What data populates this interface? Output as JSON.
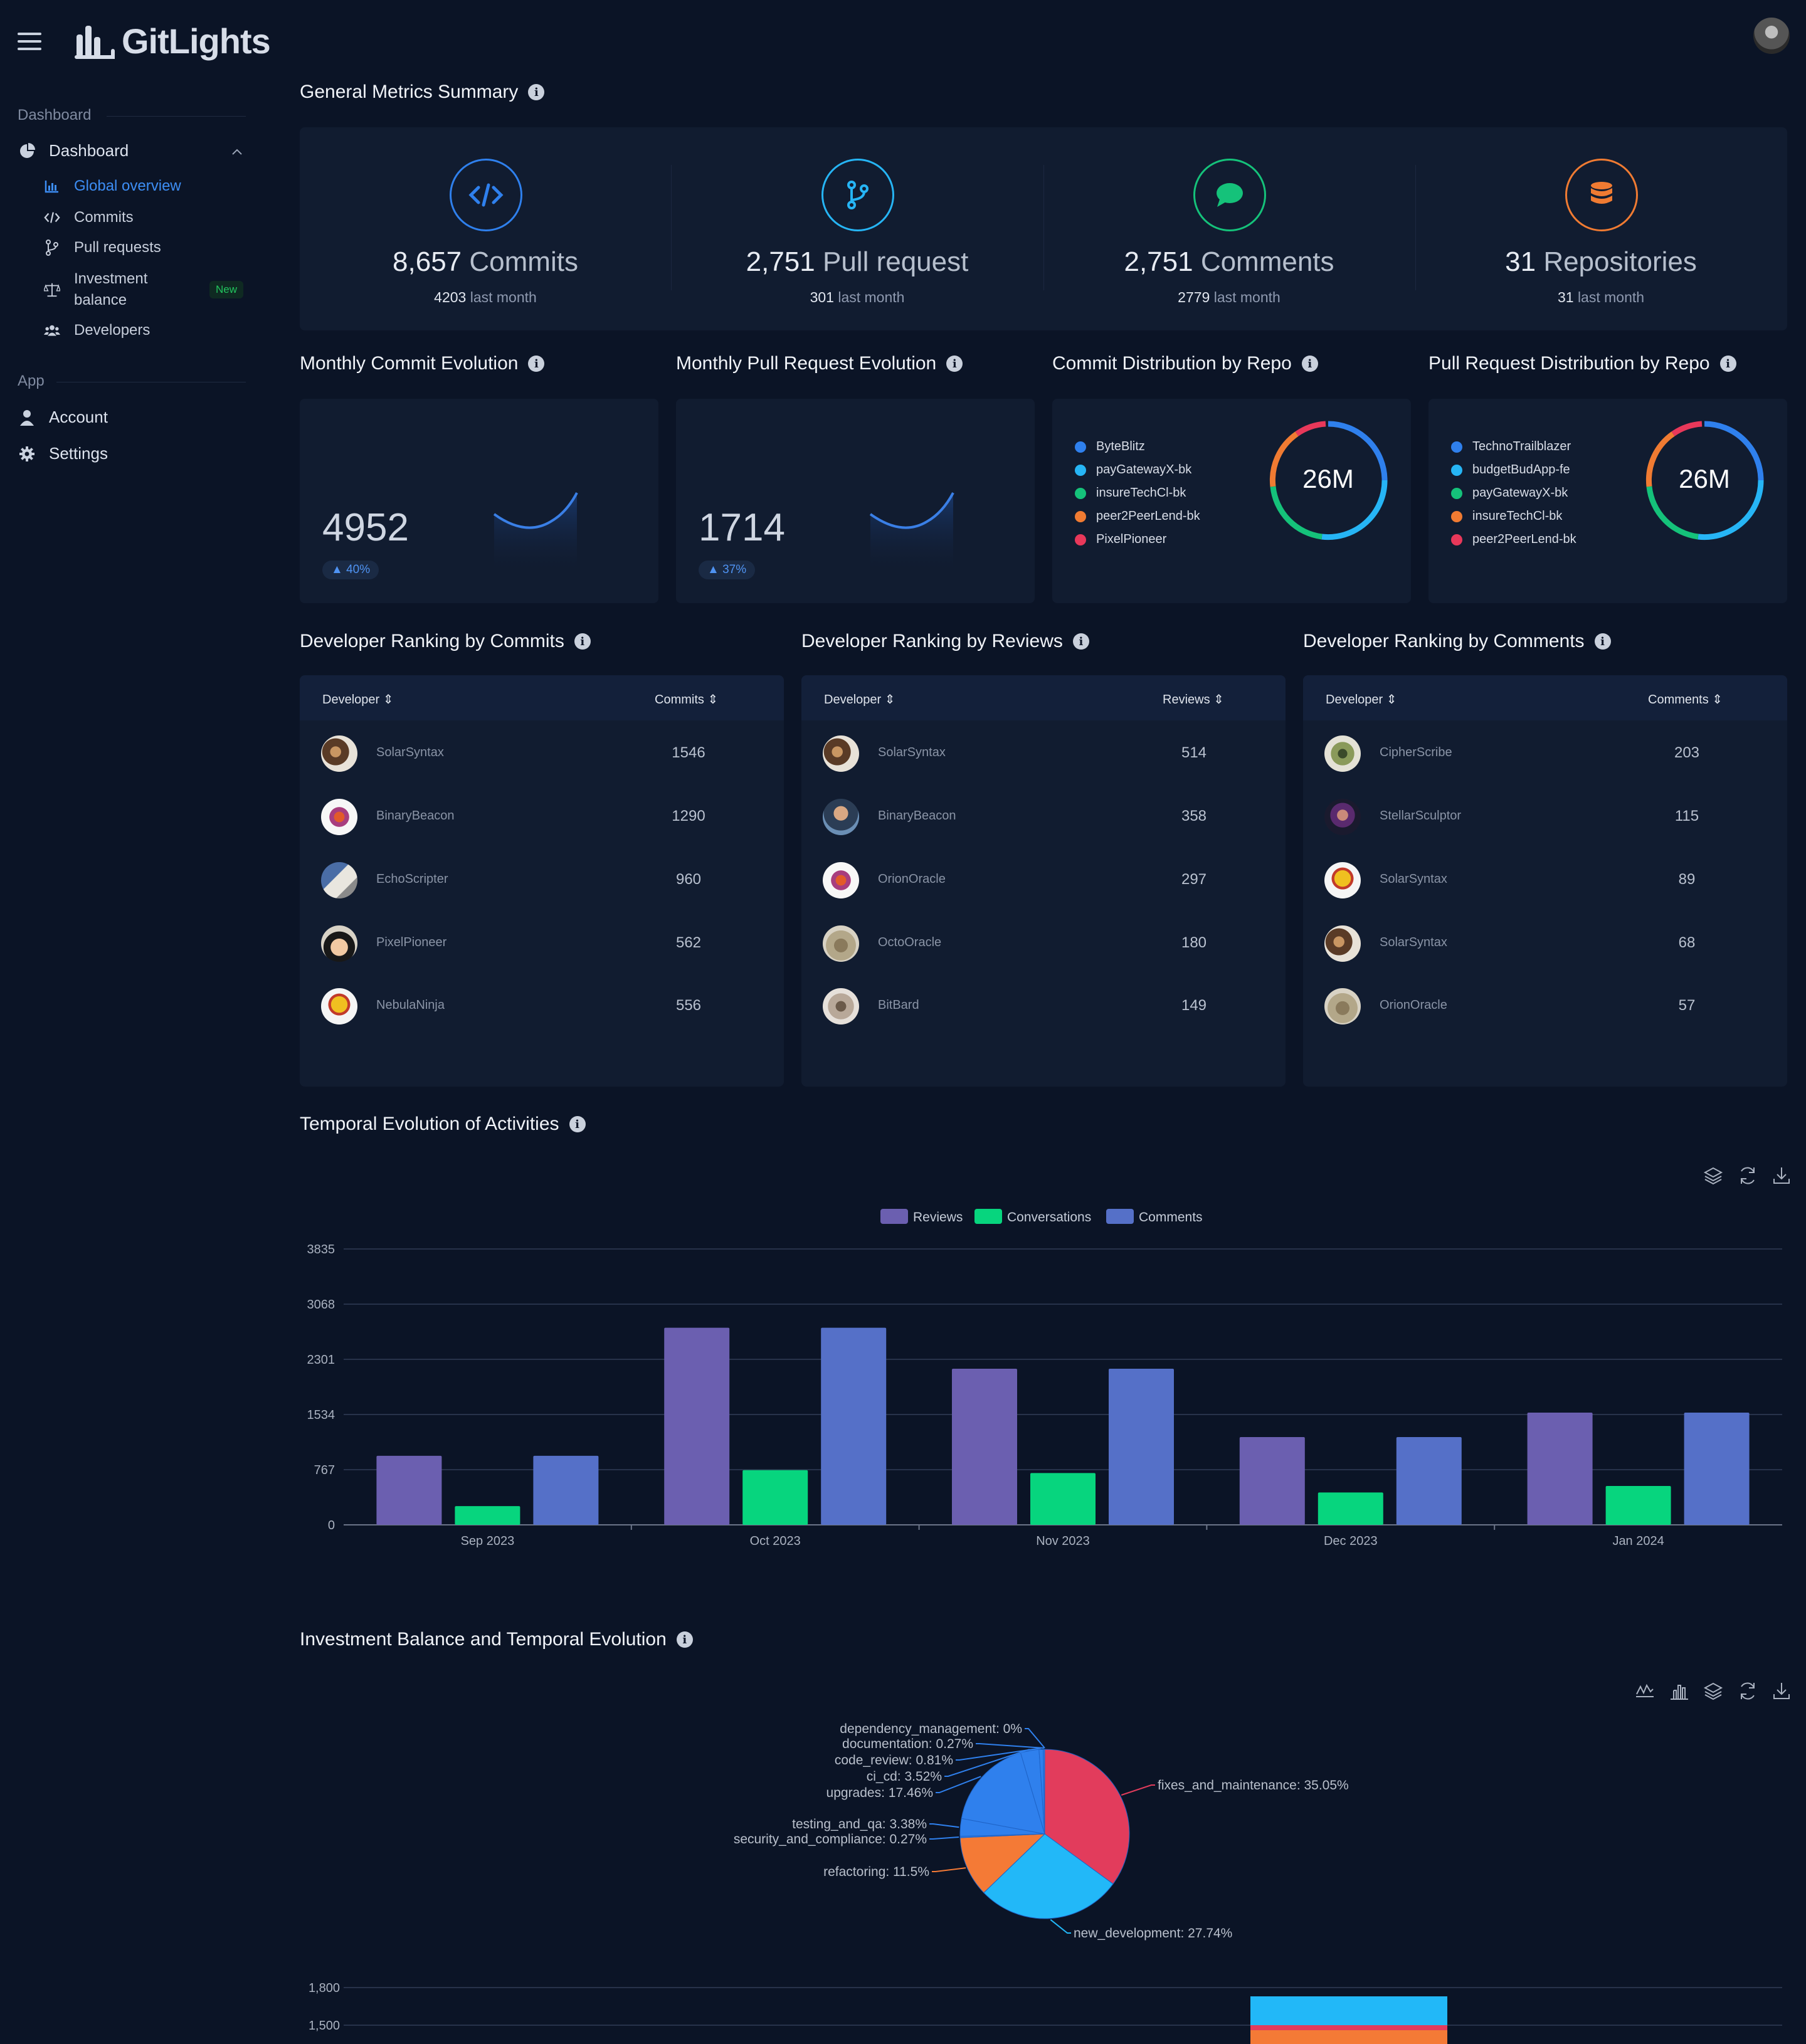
{
  "app": {
    "name": "GitLights"
  },
  "sidebar": {
    "section_dashboard": "Dashboard",
    "dashboard_label": "Dashboard",
    "sub_items": [
      {
        "label": "Global overview",
        "icon": "bar-chart-icon",
        "active": true
      },
      {
        "label": "Commits",
        "icon": "code-icon"
      },
      {
        "label": "Pull requests",
        "icon": "git-branch-icon"
      },
      {
        "label": "Investment balance",
        "icon": "scale-icon",
        "badge": "New"
      },
      {
        "label": "Developers",
        "icon": "users-icon"
      }
    ],
    "section_app": "App",
    "account_label": "Account",
    "settings_label": "Settings"
  },
  "general_metrics": {
    "title": "General Metrics Summary",
    "items": [
      {
        "value": "8,657",
        "unit": "Commits",
        "last_value": "4203",
        "last_label": "last month",
        "icon": "code-icon",
        "color": "#2f80ed"
      },
      {
        "value": "2,751",
        "unit": "Pull request",
        "last_value": "301",
        "last_label": "last month",
        "icon": "git-branch-icon",
        "color": "#26b5f5"
      },
      {
        "value": "2,751",
        "unit": "Comments",
        "last_value": "2779",
        "last_label": "last month",
        "icon": "chat-bubble-icon",
        "color": "#15c27a"
      },
      {
        "value": "31",
        "unit": "Repositories",
        "last_value": "31",
        "last_label": "last month",
        "icon": "database-icon",
        "color": "#f07b32"
      }
    ]
  },
  "monthly_commit": {
    "title": "Monthly Commit Evolution",
    "value": "4952",
    "change": "40%"
  },
  "monthly_pr": {
    "title": "Monthly Pull Request Evolution",
    "value": "1714",
    "change": "37%"
  },
  "commit_distribution": {
    "title": "Commit Distribution by Repo",
    "center_label": "26M",
    "repos": [
      {
        "name": "ByteBlitz",
        "color": "#2f80ed"
      },
      {
        "name": "payGatewayX-bk",
        "color": "#26b5f5"
      },
      {
        "name": "insureTechCl-bk",
        "color": "#15c27a"
      },
      {
        "name": "peer2PeerLend-bk",
        "color": "#f07b32"
      },
      {
        "name": "PixelPioneer",
        "color": "#e8385a"
      }
    ]
  },
  "pr_distribution": {
    "title": "Pull Request Distribution by Repo",
    "center_label": "26M",
    "repos": [
      {
        "name": "TechnoTrailblazer",
        "color": "#2f80ed"
      },
      {
        "name": "budgetBudApp-fe",
        "color": "#26b5f5"
      },
      {
        "name": "payGatewayX-bk",
        "color": "#15c27a"
      },
      {
        "name": "insureTechCl-bk",
        "color": "#f07b32"
      },
      {
        "name": "peer2PeerLend-bk",
        "color": "#e8385a"
      }
    ]
  },
  "rank_commits": {
    "title": "Developer Ranking by Commits",
    "col_dev": "Developer",
    "col_val": "Commits",
    "rows": [
      {
        "name": "SolarSyntax",
        "value": "1546"
      },
      {
        "name": "BinaryBeacon",
        "value": "1290"
      },
      {
        "name": "EchoScripter",
        "value": "960"
      },
      {
        "name": "PixelPioneer",
        "value": "562"
      },
      {
        "name": "NebulaNinja",
        "value": "556"
      }
    ]
  },
  "rank_reviews": {
    "title": "Developer Ranking by Reviews",
    "col_dev": "Developer",
    "col_val": "Reviews",
    "rows": [
      {
        "name": "SolarSyntax",
        "value": "514"
      },
      {
        "name": "BinaryBeacon",
        "value": "358"
      },
      {
        "name": "OrionOracle",
        "value": "297"
      },
      {
        "name": "OctoOracle",
        "value": "180"
      },
      {
        "name": "BitBard",
        "value": "149"
      }
    ]
  },
  "rank_comments": {
    "title": "Developer Ranking by Comments",
    "col_dev": "Developer",
    "col_val": "Comments",
    "rows": [
      {
        "name": "CipherScribe",
        "value": "203"
      },
      {
        "name": "StellarSculptor",
        "value": "115"
      },
      {
        "name": "SolarSyntax",
        "value": "89"
      },
      {
        "name": "SolarSyntax",
        "value": "68"
      },
      {
        "name": "OrionOracle",
        "value": "57"
      }
    ]
  },
  "temporal": {
    "title": "Temporal Evolution of Activities"
  },
  "investment": {
    "title": "Investment Balance and Temporal Evolution"
  },
  "chart_data": [
    {
      "type": "bar",
      "categories": [
        "Sep 2023",
        "Oct 2023",
        "Nov 2023",
        "Dec 2023",
        "Jan 2024"
      ],
      "series": [
        {
          "name": "Reviews",
          "color": "#6b5fb0",
          "values": [
            960,
            2740,
            2170,
            1220,
            1560
          ]
        },
        {
          "name": "Conversations",
          "color": "#07d57e",
          "values": [
            260,
            760,
            720,
            450,
            540
          ]
        },
        {
          "name": "Comments",
          "color": "#5570c8",
          "values": [
            960,
            2740,
            2170,
            1220,
            1560
          ]
        }
      ],
      "yticks": [
        "0",
        "767",
        "1534",
        "2301",
        "3068",
        "3835"
      ],
      "ylim": [
        0,
        3835
      ],
      "legend": "top-center",
      "grid": true
    },
    {
      "type": "pie",
      "slices": [
        {
          "label": "fixes_and_maintenance: 35.05%",
          "value": 35.05,
          "color": "#e23c5c"
        },
        {
          "label": "new_development: 27.74%",
          "value": 27.74,
          "color": "#22b8f8"
        },
        {
          "label": "refactoring: 11.5%",
          "value": 11.5,
          "color": "#f47a36"
        },
        {
          "label": "security_and_compliance: 0.27%",
          "value": 0.27,
          "color": "#2f80ed"
        },
        {
          "label": "testing_and_qa: 3.38%",
          "value": 3.38,
          "color": "#2f80ed"
        },
        {
          "label": "upgrades: 17.46%",
          "value": 17.46,
          "color": "#2f80ed"
        },
        {
          "label": "ci_cd: 3.52%",
          "value": 3.52,
          "color": "#2f80ed"
        },
        {
          "label": "code_review: 0.81%",
          "value": 0.81,
          "color": "#2f80ed"
        },
        {
          "label": "documentation: 0.27%",
          "value": 0.27,
          "color": "#2f80ed"
        },
        {
          "label": "dependency_management: 0%",
          "value": 0,
          "color": "#2f80ed"
        }
      ]
    },
    {
      "type": "bar",
      "yticks": [
        "1,800",
        "1,500"
      ],
      "partial": true
    }
  ]
}
